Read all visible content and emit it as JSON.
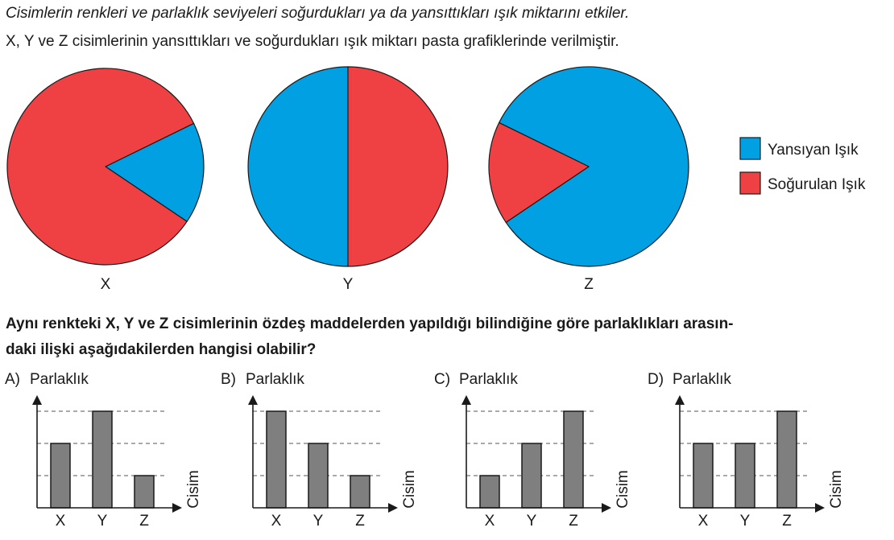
{
  "intro": {
    "line1": "Cisimlerin renkleri ve parlaklık seviyeleri soğurdukları ya da yansıttıkları ışık miktarını etkiler.",
    "line2": "X, Y ve Z cisimlerinin yansıttıkları ve soğurdukları ışık miktarı pasta grafiklerinde verilmiştir."
  },
  "question": {
    "line1": "Aynı renkteki X, Y ve Z cisimlerinin özdeş maddelerden yapıldığı bilindiğine göre parlaklıkları arasın-",
    "line2": "daki ilişki aşağıdakilerden hangisi olabilir?"
  },
  "colors": {
    "reflected": "#00a0e3",
    "absorbed": "#ef4044",
    "bar": "#7f7f7f",
    "axis": "#1a1a1a",
    "dashed": "#555555"
  },
  "chart_data": [
    {
      "type": "pie",
      "label": "X",
      "slices": [
        {
          "series": "Yansıyan Işık",
          "value": 16.7
        },
        {
          "series": "Soğurulan Işık",
          "value": 83.3
        }
      ]
    },
    {
      "type": "pie",
      "label": "Y",
      "slices": [
        {
          "series": "Yansıyan Işık",
          "value": 50
        },
        {
          "series": "Soğurulan Işık",
          "value": 50
        }
      ]
    },
    {
      "type": "pie",
      "label": "Z",
      "slices": [
        {
          "series": "Yansıyan Işık",
          "value": 83.3
        },
        {
          "series": "Soğurulan Işık",
          "value": 16.7
        }
      ]
    },
    {
      "type": "bar",
      "option": "A)",
      "ylabel": "Parlaklık",
      "xlabel": "Cisim",
      "categories": [
        "X",
        "Y",
        "Z"
      ],
      "values": [
        2,
        3,
        1
      ],
      "ylim": [
        0,
        3
      ]
    },
    {
      "type": "bar",
      "option": "B)",
      "ylabel": "Parlaklık",
      "xlabel": "Cisim",
      "categories": [
        "X",
        "Y",
        "Z"
      ],
      "values": [
        3,
        2,
        1
      ],
      "ylim": [
        0,
        3
      ]
    },
    {
      "type": "bar",
      "option": "C)",
      "ylabel": "Parlaklık",
      "xlabel": "Cisim",
      "categories": [
        "X",
        "Y",
        "Z"
      ],
      "values": [
        1,
        2,
        3
      ],
      "ylim": [
        0,
        3
      ]
    },
    {
      "type": "bar",
      "option": "D)",
      "ylabel": "Parlaklık",
      "xlabel": "Cisim",
      "categories": [
        "X",
        "Y",
        "Z"
      ],
      "values": [
        2,
        2,
        3
      ],
      "ylim": [
        0,
        3
      ]
    }
  ],
  "legend": {
    "placement": "right",
    "items": [
      {
        "label": "Yansıyan Işık",
        "color_key": "reflected"
      },
      {
        "label": "Soğurulan Işık",
        "color_key": "absorbed"
      }
    ]
  }
}
